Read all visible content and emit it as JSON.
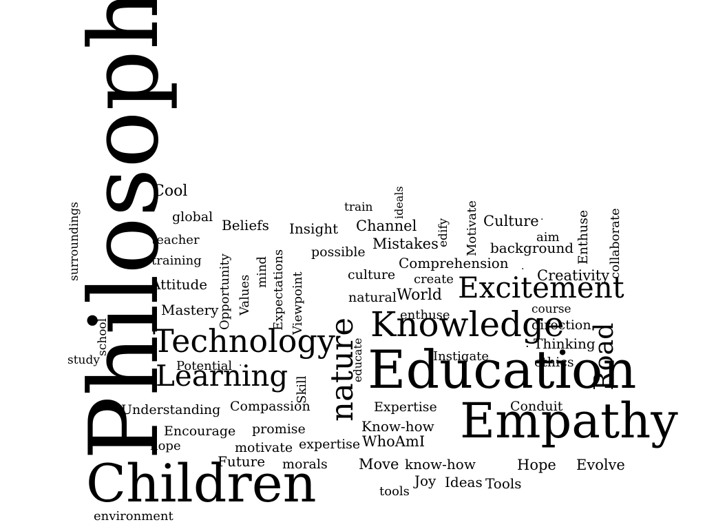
{
  "words": {
    "philosophy": "Philosophy",
    "children": "Children",
    "education": "Education",
    "empathy": "Empathy",
    "knowledge": "Knowledge",
    "technology": "Technology",
    "learning": "Learning",
    "excitement": "Excitement",
    "nature": "nature",
    "road": "Road",
    "cool": "Cool",
    "global": "global",
    "teacher": "teacher",
    "training": "training",
    "attitude": "Attitude",
    "mastery": "Mastery",
    "surroundings": "surroundings",
    "school": "school",
    "study": "study",
    "potential": "Potential",
    "understanding": "Understanding",
    "compassion": "Compassion",
    "encourage": "Encourage",
    "hope_lower": "hope",
    "promise": "promise",
    "motivate_lower": "motivate",
    "future": "Future",
    "morals": "morals",
    "environment": "environment",
    "beliefs": "Beliefs",
    "opportunity": "Opportunity",
    "values": "Values",
    "mind": "mind",
    "expectations": "Expectations",
    "viewpoint": "Viewpoint",
    "insight": "Insight",
    "possible": "possible",
    "skill": "Skill",
    "train": "train",
    "ideals": "ideals",
    "channel": "Channel",
    "mistakes": "Mistakes",
    "edify": "edify",
    "motivate_upper": "Motivate",
    "culture_upper": "Culture",
    "aim": "aim",
    "background": "background",
    "enthuse_upper": "Enthuse",
    "collaborate": "collaborate",
    "comprehension": "Comprehension",
    "culture_lower": "culture",
    "create": "create",
    "creativity": "Creativity",
    "natural": "natural",
    "world": "World",
    "enthuse_lower": "enthuse",
    "course": "course",
    "direction": "direction",
    "thinking": "Thinking",
    "educate": "educate",
    "instigate": "Instigate",
    "ethics": "ethics",
    "expertise_upper": "Expertise",
    "conduit": "Conduit",
    "know_how_upper": "Know-how",
    "expertise_lower": "expertise",
    "who_am_i": "WhoAmI",
    "move": "Move",
    "know_how_lower": "know-how",
    "hope_upper": "Hope",
    "evolve": "Evolve",
    "joy": "Joy",
    "ideas": "Ideas",
    "tools_lower": "tools",
    "tools_upper": "Tools"
  }
}
